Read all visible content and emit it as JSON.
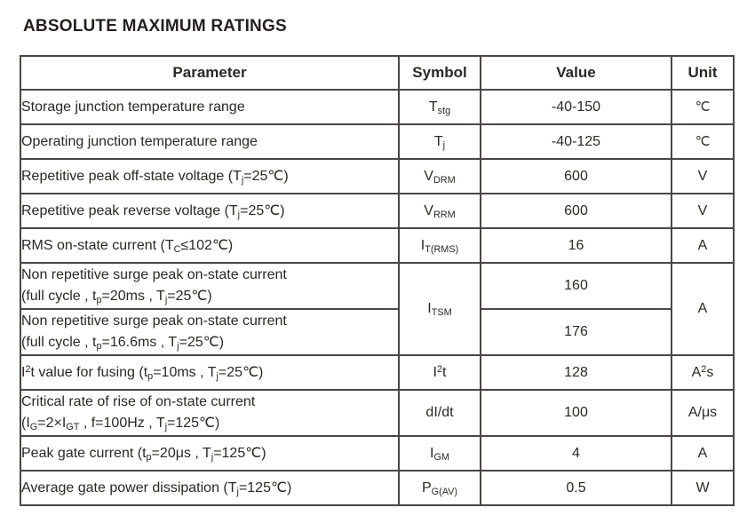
{
  "page_title": "ABSOLUTE MAXIMUM RATINGS",
  "colors": {
    "background": "#ffffff",
    "text": "#2b2826",
    "border": "#4b4543"
  },
  "table": {
    "headers": {
      "parameter": "Parameter",
      "symbol": "Symbol",
      "value": "Value",
      "unit": "Unit"
    },
    "rows": [
      {
        "parameter": "Storage junction temperature range",
        "symbol": "T~stg~",
        "value": "-40-150",
        "unit": "℃"
      },
      {
        "parameter": "Operating junction temperature range",
        "symbol": "T~j~",
        "value": "-40-125",
        "unit": "℃"
      },
      {
        "parameter": "Repetitive peak off-state voltage (T~j~=25℃)",
        "symbol": "V~DRM~",
        "value": "600",
        "unit": "V"
      },
      {
        "parameter": "Repetitive peak reverse voltage (T~j~=25℃)",
        "symbol": "V~RRM~",
        "value": "600",
        "unit": "V"
      },
      {
        "parameter": "RMS on-state current (T~C~≤102℃)",
        "symbol": "I~T(RMS)~",
        "value": "16",
        "unit": "A"
      },
      {
        "parameter": "Non repetitive surge peak on-state current\n(full cycle , t~p~=20ms , T~j~=25℃)",
        "symbol": "I~TSM~",
        "value": "160",
        "unit": "A"
      },
      {
        "parameter": "Non repetitive surge peak on-state current\n(full cycle , t~p~=16.6ms , T~j~=25℃)",
        "value": "176"
      },
      {
        "parameter": "I^2^t value for fusing (t~p~=10ms , T~j~=25℃)",
        "symbol": "I^2^t",
        "value": "128",
        "unit": "A^2^s"
      },
      {
        "parameter": "Critical rate of rise of on-state current\n(I~G~=2×I~GT~ , f=100Hz , T~j~=125℃)",
        "symbol": "dI/dt",
        "value": "100",
        "unit": "A/μs"
      },
      {
        "parameter": "Peak gate current (t~p~=20μs , T~j~=125℃)",
        "symbol": "I~GM~",
        "value": "4",
        "unit": "A"
      },
      {
        "parameter": "Average gate power dissipation (T~j~=125℃)",
        "symbol": "P~G(AV)~",
        "value": "0.5",
        "unit": "W"
      }
    ]
  }
}
